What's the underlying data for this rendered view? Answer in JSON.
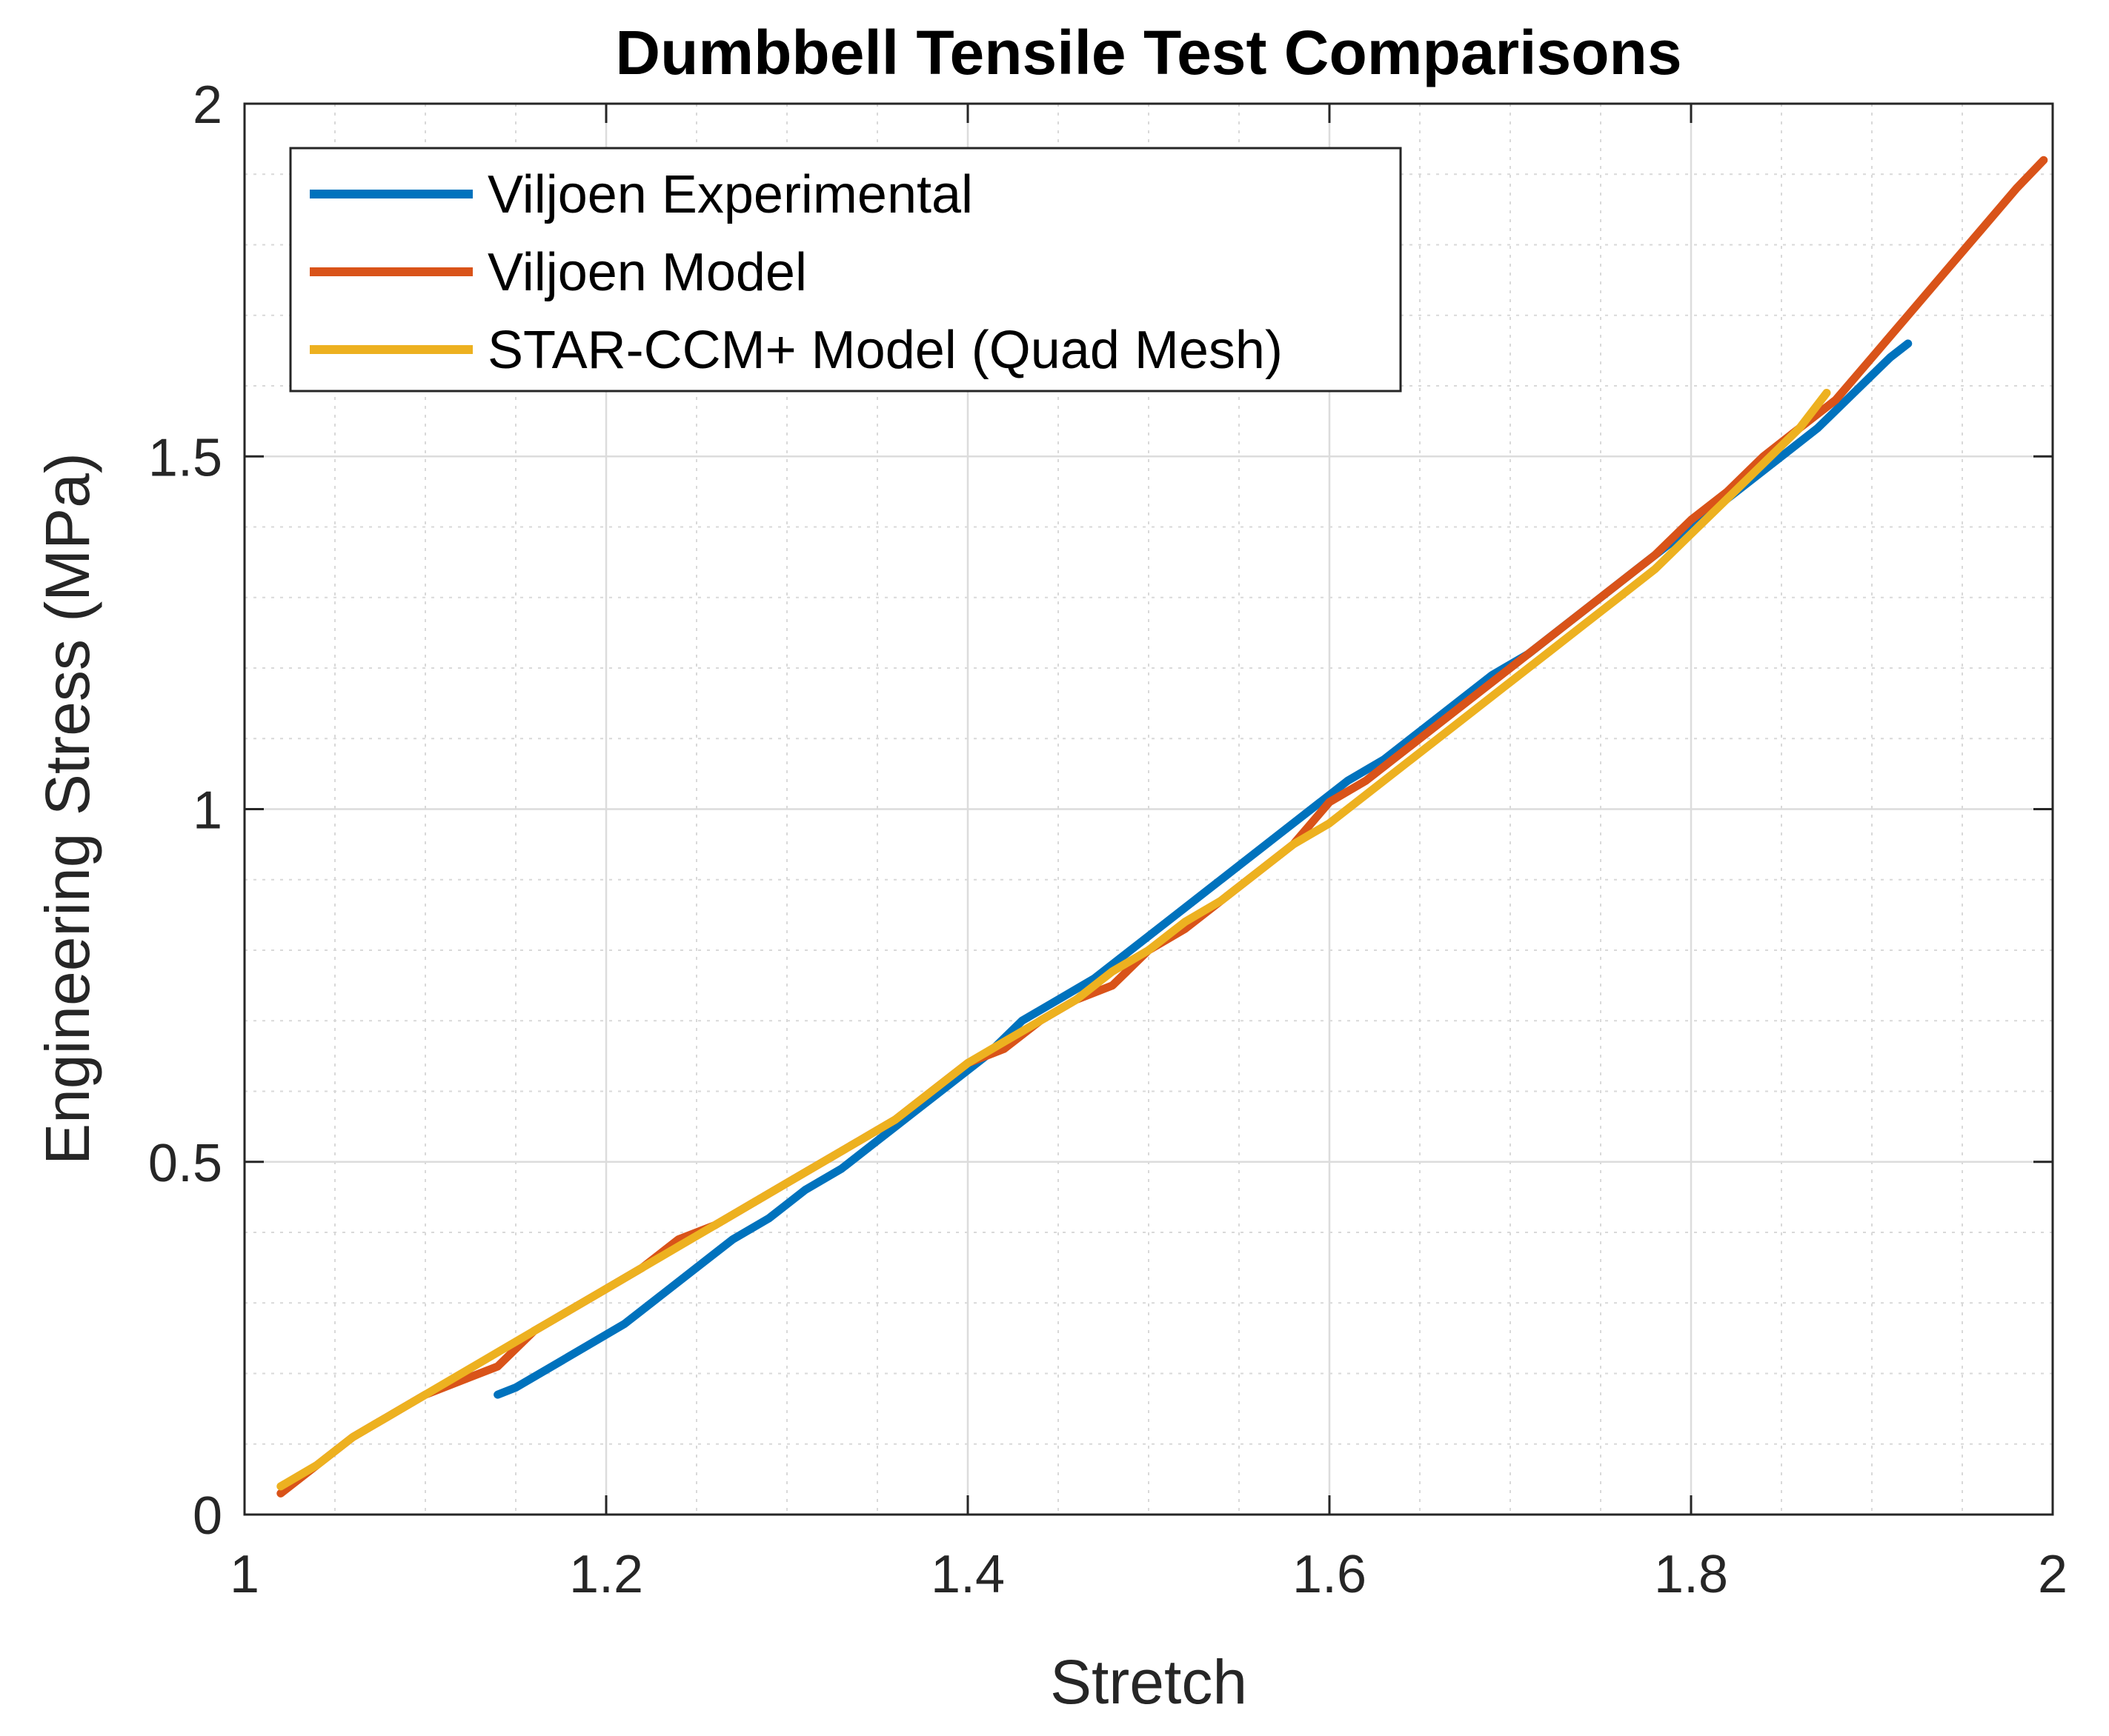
{
  "chart_data": {
    "type": "line",
    "title": "Dumbbell Tensile Test Comparisons",
    "xlabel": "Stretch",
    "ylabel": "Engineering Stress (MPa)",
    "xlim": [
      1,
      2
    ],
    "ylim": [
      0,
      2
    ],
    "xticks": [
      1,
      1.2,
      1.4,
      1.6,
      1.8,
      2
    ],
    "xtick_labels": [
      "1",
      "1.2",
      "1.4",
      "1.6",
      "1.8",
      "2"
    ],
    "yticks": [
      0,
      0.5,
      1,
      1.5,
      2
    ],
    "ytick_labels": [
      "0",
      "0.5",
      "1",
      "1.5",
      "2"
    ],
    "grid": true,
    "minor_grid": true,
    "legend_position": "top-left",
    "series": [
      {
        "name": "Viljoen Experimental",
        "color": "#0072BD",
        "x": [
          1.14,
          1.15,
          1.17,
          1.19,
          1.21,
          1.23,
          1.25,
          1.27,
          1.29,
          1.31,
          1.33,
          1.35,
          1.37,
          1.39,
          1.41,
          1.43,
          1.45,
          1.47,
          1.49,
          1.51,
          1.53,
          1.55,
          1.57,
          1.59,
          1.61,
          1.63,
          1.65,
          1.67,
          1.69,
          1.71,
          1.73,
          1.75,
          1.77,
          1.79,
          1.81,
          1.83,
          1.85,
          1.87,
          1.89,
          1.91,
          1.92
        ],
        "y": [
          0.17,
          0.18,
          0.21,
          0.24,
          0.27,
          0.31,
          0.35,
          0.39,
          0.42,
          0.46,
          0.49,
          0.53,
          0.57,
          0.61,
          0.65,
          0.7,
          0.73,
          0.76,
          0.8,
          0.84,
          0.88,
          0.92,
          0.96,
          1.0,
          1.04,
          1.07,
          1.11,
          1.15,
          1.19,
          1.22,
          1.26,
          1.3,
          1.34,
          1.38,
          1.42,
          1.46,
          1.5,
          1.54,
          1.59,
          1.64,
          1.66
        ]
      },
      {
        "name": "Viljoen Model",
        "color": "#D95319",
        "x": [
          1.02,
          1.04,
          1.06,
          1.08,
          1.1,
          1.12,
          1.14,
          1.16,
          1.18,
          1.2,
          1.22,
          1.24,
          1.26,
          1.28,
          1.3,
          1.32,
          1.34,
          1.36,
          1.38,
          1.4,
          1.42,
          1.44,
          1.46,
          1.48,
          1.5,
          1.52,
          1.54,
          1.56,
          1.58,
          1.6,
          1.62,
          1.64,
          1.66,
          1.68,
          1.7,
          1.72,
          1.74,
          1.76,
          1.78,
          1.8,
          1.82,
          1.84,
          1.86,
          1.88,
          1.9,
          1.92,
          1.94,
          1.96,
          1.98,
          1.995
        ],
        "y": [
          0.03,
          0.07,
          0.11,
          0.14,
          0.17,
          0.19,
          0.21,
          0.26,
          0.29,
          0.32,
          0.35,
          0.39,
          0.41,
          0.44,
          0.47,
          0.5,
          0.53,
          0.56,
          0.6,
          0.64,
          0.66,
          0.7,
          0.73,
          0.75,
          0.8,
          0.83,
          0.87,
          0.91,
          0.95,
          1.01,
          1.04,
          1.08,
          1.12,
          1.16,
          1.2,
          1.24,
          1.28,
          1.32,
          1.36,
          1.41,
          1.45,
          1.5,
          1.54,
          1.58,
          1.64,
          1.7,
          1.76,
          1.82,
          1.88,
          1.92
        ]
      },
      {
        "name": "STAR-CCM+ Model (Quad Mesh)",
        "color": "#EDB120",
        "x": [
          1.02,
          1.04,
          1.06,
          1.08,
          1.1,
          1.12,
          1.14,
          1.16,
          1.18,
          1.2,
          1.22,
          1.24,
          1.26,
          1.28,
          1.3,
          1.32,
          1.34,
          1.36,
          1.38,
          1.4,
          1.42,
          1.44,
          1.46,
          1.48,
          1.5,
          1.52,
          1.54,
          1.56,
          1.58,
          1.6,
          1.62,
          1.64,
          1.66,
          1.68,
          1.7,
          1.72,
          1.74,
          1.76,
          1.78,
          1.8,
          1.82,
          1.84,
          1.86,
          1.875
        ],
        "y": [
          0.04,
          0.07,
          0.11,
          0.14,
          0.17,
          0.2,
          0.23,
          0.26,
          0.29,
          0.32,
          0.35,
          0.38,
          0.41,
          0.44,
          0.47,
          0.5,
          0.53,
          0.56,
          0.6,
          0.64,
          0.67,
          0.7,
          0.73,
          0.77,
          0.8,
          0.84,
          0.87,
          0.91,
          0.95,
          0.98,
          1.02,
          1.06,
          1.1,
          1.14,
          1.18,
          1.22,
          1.26,
          1.3,
          1.34,
          1.39,
          1.44,
          1.49,
          1.54,
          1.59
        ]
      }
    ]
  }
}
